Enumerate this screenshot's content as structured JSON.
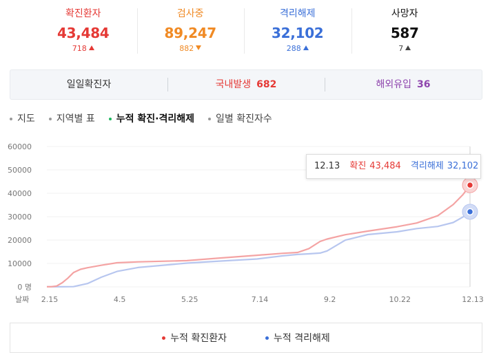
{
  "stats": [
    {
      "label": "확진환자",
      "value": "43,484",
      "delta": "718",
      "dir": "up",
      "color": "#e53935"
    },
    {
      "label": "검사중",
      "value": "89,247",
      "delta": "882",
      "dir": "down",
      "color": "#f08a24"
    },
    {
      "label": "격리해제",
      "value": "32,102",
      "delta": "288",
      "dir": "up",
      "color": "#3a6fd8"
    },
    {
      "label": "사망자",
      "value": "587",
      "delta": "7",
      "dir": "up",
      "color": "#111111"
    }
  ],
  "summary": {
    "daily_label": "일일확진자",
    "domestic_label": "국내발생",
    "domestic_value": "682",
    "overseas_label": "해외유입",
    "overseas_value": "36"
  },
  "tabs": [
    {
      "label": "지도",
      "active": false
    },
    {
      "label": "지역별 표",
      "active": false
    },
    {
      "label": "누적 확진·격리해제",
      "active": true
    },
    {
      "label": "일별 확진자수",
      "active": false
    }
  ],
  "tooltip": {
    "date": "12.13",
    "confirmed_label": "확진",
    "confirmed_value": "43,484",
    "released_label": "격리해제",
    "released_value": "32,102"
  },
  "legend": {
    "confirmed": "누적 확진환자",
    "released": "누적 격리해제"
  },
  "chart_data": {
    "type": "line",
    "x_axis_label": "날짜",
    "x_ticks": [
      "2.15",
      "4.5",
      "5.25",
      "7.14",
      "9.2",
      "10.22",
      "12.13"
    ],
    "y_ticks": [
      "60000",
      "50000",
      "40000",
      "30000",
      "20000",
      "10000",
      "0 명"
    ],
    "ylim": [
      0,
      60000
    ],
    "series": [
      {
        "name": "누적 확진환자",
        "color": "#f4a3a3",
        "x": [
          "2.15",
          "2.18",
          "2.22",
          "2.26",
          "3.1",
          "3.5",
          "3.10",
          "3.15",
          "3.25",
          "4.5",
          "4.20",
          "5.25",
          "6.15",
          "7.14",
          "8.1",
          "8.12",
          "8.20",
          "8.28",
          "9.2",
          "9.15",
          "10.1",
          "10.22",
          "11.5",
          "11.20",
          "12.1",
          "12.8",
          "12.13"
        ],
        "values": [
          28,
          30,
          350,
          1766,
          3736,
          6088,
          7513,
          8162,
          9241,
          10284,
          10674,
          11206,
          12198,
          13512,
          14336,
          14714,
          16346,
          19400,
          20449,
          22285,
          23812,
          25698,
          27284,
          30403,
          35163,
          39432,
          43484
        ]
      },
      {
        "name": "누적 격리해제",
        "color": "#b7c6ef",
        "x": [
          "2.15",
          "2.26",
          "3.5",
          "3.15",
          "3.25",
          "4.5",
          "4.20",
          "5.25",
          "6.15",
          "7.14",
          "8.1",
          "8.12",
          "8.20",
          "8.28",
          "9.2",
          "9.15",
          "10.1",
          "10.22",
          "11.5",
          "11.20",
          "12.1",
          "12.8",
          "12.13"
        ],
        "values": [
          16,
          22,
          88,
          1401,
          4144,
          6598,
          8277,
          10135,
          10898,
          11914,
          13233,
          13863,
          14132,
          14455,
          15356,
          19970,
          22358,
          23541,
          24910,
          25812,
          27508,
          29880,
          32102
        ]
      }
    ],
    "grid": true,
    "legend_position": "bottom"
  }
}
